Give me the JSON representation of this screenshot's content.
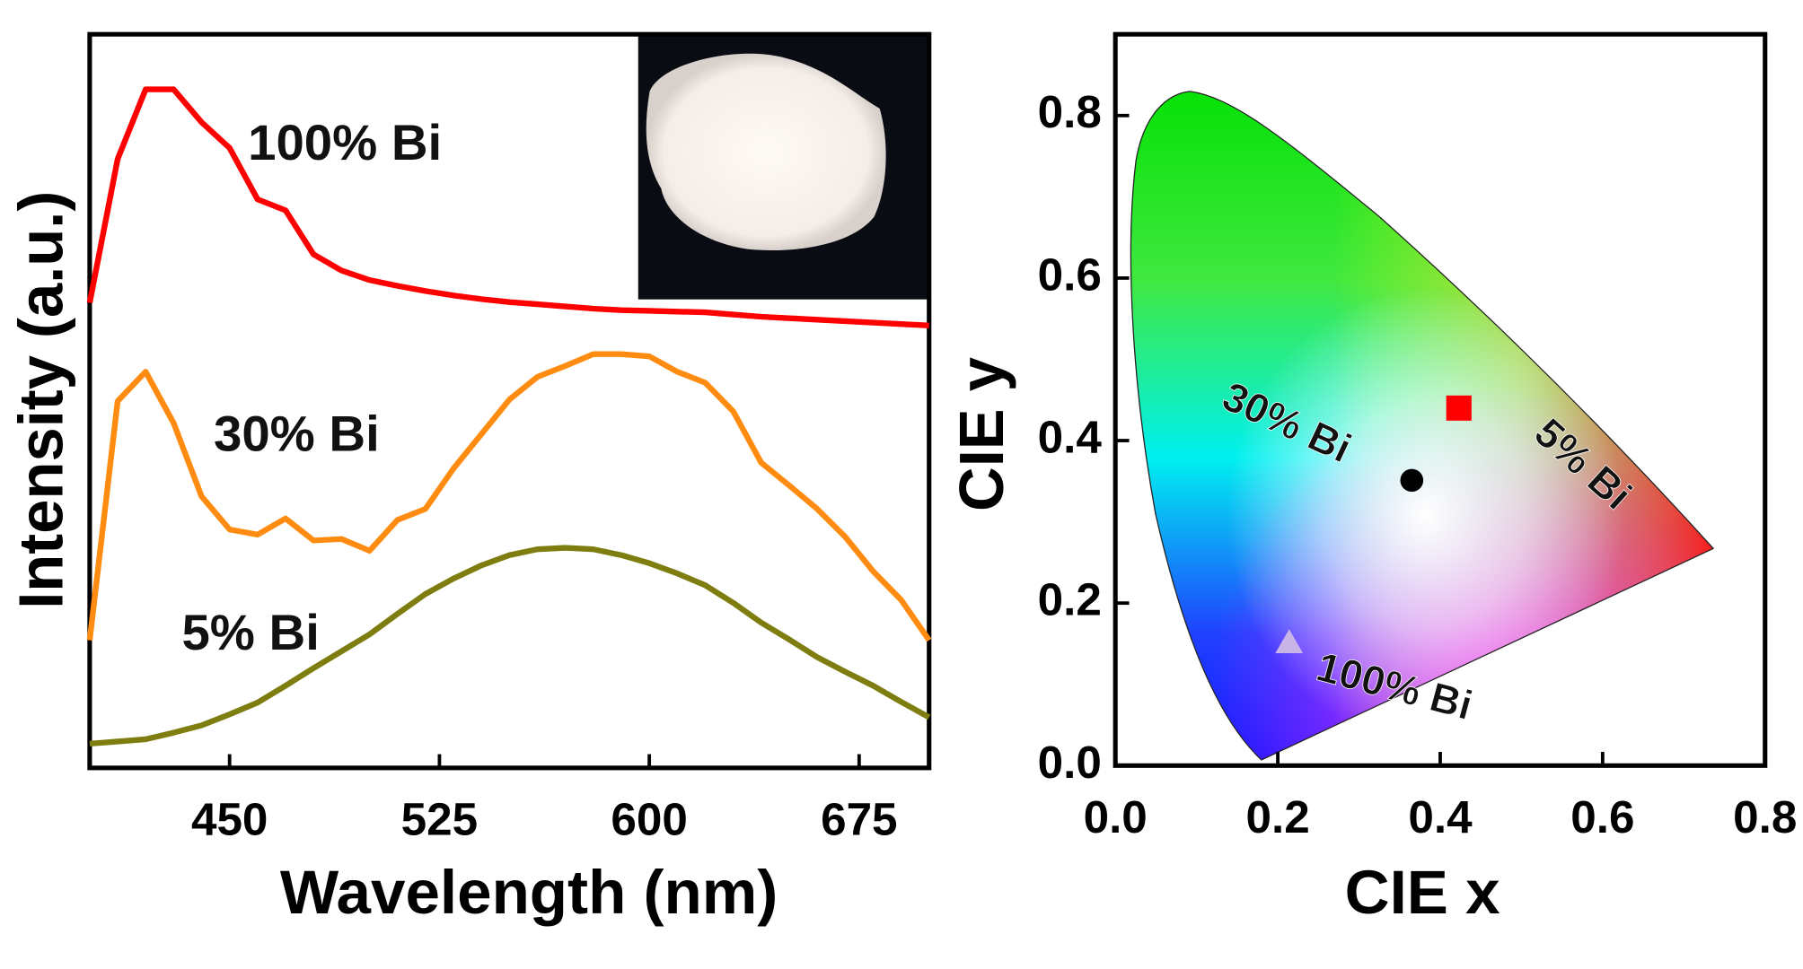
{
  "chart_data": [
    {
      "type": "line",
      "x_label": "Wavelength (nm)",
      "y_label": "Intensity (a.u.)",
      "x": [
        400,
        410,
        420,
        430,
        440,
        450,
        460,
        470,
        480,
        490,
        500,
        510,
        520,
        530,
        540,
        550,
        560,
        570,
        580,
        590,
        600,
        610,
        620,
        630,
        640,
        650,
        660,
        670,
        680,
        690,
        700
      ],
      "xlim": [
        400,
        700
      ],
      "xticks": [
        450,
        525,
        600,
        675
      ],
      "ylim": [
        0,
        1
      ],
      "series": [
        {
          "name": "100% Bi",
          "color": "#ff0000",
          "values": [
            0.634,
            0.83,
            0.925,
            0.925,
            0.88,
            0.845,
            0.775,
            0.76,
            0.7,
            0.678,
            0.665,
            0.657,
            0.65,
            0.644,
            0.639,
            0.635,
            0.632,
            0.629,
            0.626,
            0.624,
            0.623,
            0.622,
            0.621,
            0.618,
            0.615,
            0.613,
            0.611,
            0.609,
            0.607,
            0.605,
            0.603
          ]
        },
        {
          "name": "30% Bi",
          "color": "#ff8c10",
          "values": [
            0.174,
            0.5,
            0.54,
            0.47,
            0.37,
            0.325,
            0.318,
            0.34,
            0.31,
            0.312,
            0.296,
            0.338,
            0.353,
            0.408,
            0.455,
            0.502,
            0.533,
            0.548,
            0.564,
            0.564,
            0.561,
            0.54,
            0.525,
            0.486,
            0.416,
            0.385,
            0.353,
            0.315,
            0.268,
            0.229,
            0.174
          ]
        },
        {
          "name": "5% Bi",
          "color": "#7d7d10",
          "values": [
            0.033,
            0.036,
            0.039,
            0.048,
            0.058,
            0.073,
            0.089,
            0.112,
            0.136,
            0.159,
            0.182,
            0.21,
            0.237,
            0.258,
            0.276,
            0.29,
            0.298,
            0.3,
            0.298,
            0.29,
            0.279,
            0.265,
            0.249,
            0.225,
            0.198,
            0.175,
            0.151,
            0.131,
            0.112,
            0.09,
            0.069
          ]
        }
      ]
    },
    {
      "type": "scatter",
      "x_label": "CIE x",
      "y_label": "CIE y",
      "xlim": [
        0,
        0.8
      ],
      "xticks": [
        {
          "value": 0,
          "label": "0.0"
        },
        0.2,
        0.4,
        0.6,
        0.8
      ],
      "ylim": [
        0,
        0.9
      ],
      "yticks": [
        {
          "value": 0,
          "label": "0.0"
        },
        0.2,
        0.4,
        0.6,
        0.8
      ],
      "series": [
        {
          "name": "100% Bi",
          "color": "#c8b4e6",
          "marker": "triangle",
          "x": [
            0.214
          ],
          "values": [
            0.151
          ]
        },
        {
          "name": "30% Bi",
          "color": "#000000",
          "marker": "circle",
          "x": [
            0.365
          ],
          "values": [
            0.351
          ]
        },
        {
          "name": "5% Bi",
          "color": "#ff0000",
          "marker": "square",
          "x": [
            0.423
          ],
          "values": [
            0.44
          ]
        }
      ]
    }
  ]
}
